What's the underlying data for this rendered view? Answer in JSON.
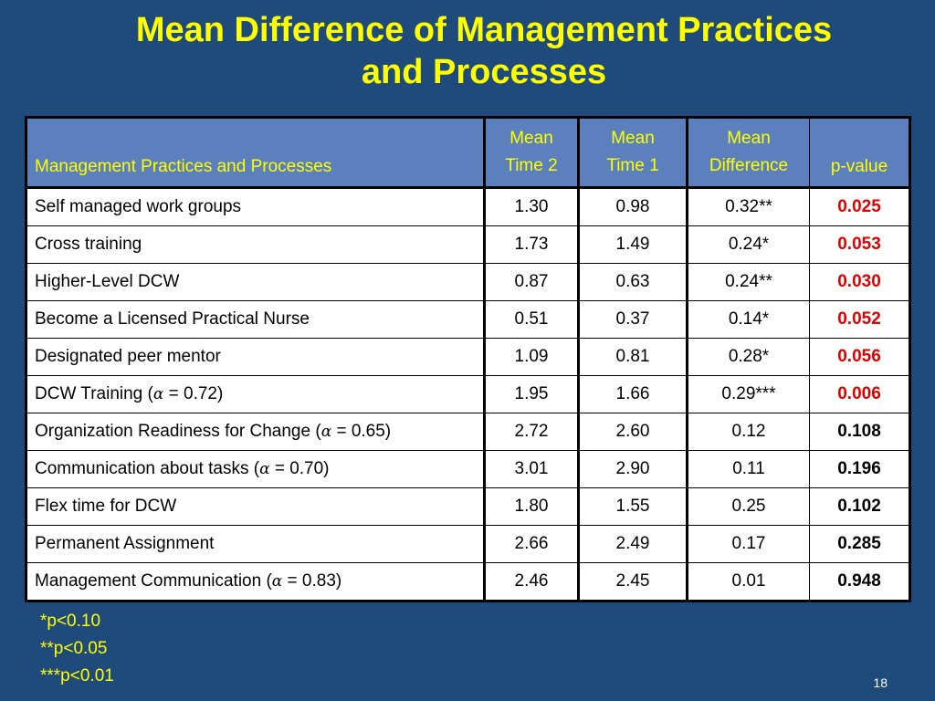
{
  "title": {
    "line1": "Mean Difference of Management Practices",
    "line2": "and Processes"
  },
  "table": {
    "headers": {
      "name": "Management Practices and Processes",
      "time2": [
        "Mean",
        "Time 2"
      ],
      "time1": [
        "Mean",
        "Time 1"
      ],
      "diff": [
        "Mean",
        "Difference"
      ],
      "pvalue": "p-value"
    },
    "rows": [
      {
        "pre": "Self managed work groups",
        "alpha": "",
        "post": "",
        "t2": "1.30",
        "t1": "0.98",
        "diff": "0.32**",
        "p": "0.025",
        "sig": true
      },
      {
        "pre": "Cross training",
        "alpha": "",
        "post": "",
        "t2": "1.73",
        "t1": "1.49",
        "diff": "0.24*",
        "p": "0.053",
        "sig": true
      },
      {
        "pre": "Higher-Level DCW",
        "alpha": "",
        "post": "",
        "t2": "0.87",
        "t1": "0.63",
        "diff": "0.24**",
        "p": "0.030",
        "sig": true
      },
      {
        "pre": "Become a Licensed Practical Nurse",
        "alpha": "",
        "post": "",
        "t2": "0.51",
        "t1": "0.37",
        "diff": "0.14*",
        "p": "0.052",
        "sig": true
      },
      {
        "pre": "Designated peer mentor",
        "alpha": "",
        "post": "",
        "t2": "1.09",
        "t1": "0.81",
        "diff": "0.28*",
        "p": "0.056",
        "sig": true
      },
      {
        "pre": "DCW Training (",
        "alpha": "α",
        "post": " = 0.72)",
        "t2": "1.95",
        "t1": "1.66",
        "diff": "0.29***",
        "p": "0.006",
        "sig": true
      },
      {
        "pre": "Organization Readiness for Change (",
        "alpha": "α",
        "post": " = 0.65)",
        "t2": "2.72",
        "t1": "2.60",
        "diff": "0.12",
        "p": "0.108",
        "sig": false
      },
      {
        "pre": "Communication about tasks (",
        "alpha": "α",
        "post": " = 0.70)",
        "t2": "3.01",
        "t1": "2.90",
        "diff": "0.11",
        "p": "0.196",
        "sig": false
      },
      {
        "pre": "Flex time for DCW",
        "alpha": "",
        "post": "",
        "t2": "1.80",
        "t1": "1.55",
        "diff": "0.25",
        "p": "0.102",
        "sig": false
      },
      {
        "pre": "Permanent Assignment",
        "alpha": "",
        "post": "",
        "t2": "2.66",
        "t1": "2.49",
        "diff": "0.17",
        "p": "0.285",
        "sig": false
      },
      {
        "pre": "Management Communication (",
        "alpha": "α",
        "post": " = 0.83)",
        "t2": "2.46",
        "t1": "2.45",
        "diff": "0.01",
        "p": "0.948",
        "sig": false
      }
    ]
  },
  "notes": [
    "*p<0.10",
    "**p<0.05",
    "***p<0.01"
  ],
  "page_number": "18",
  "colors": {
    "background": "#1f4a7c",
    "title": "#ffff00",
    "header_bg": "#5b80bd",
    "significant_p": "#e00000"
  }
}
